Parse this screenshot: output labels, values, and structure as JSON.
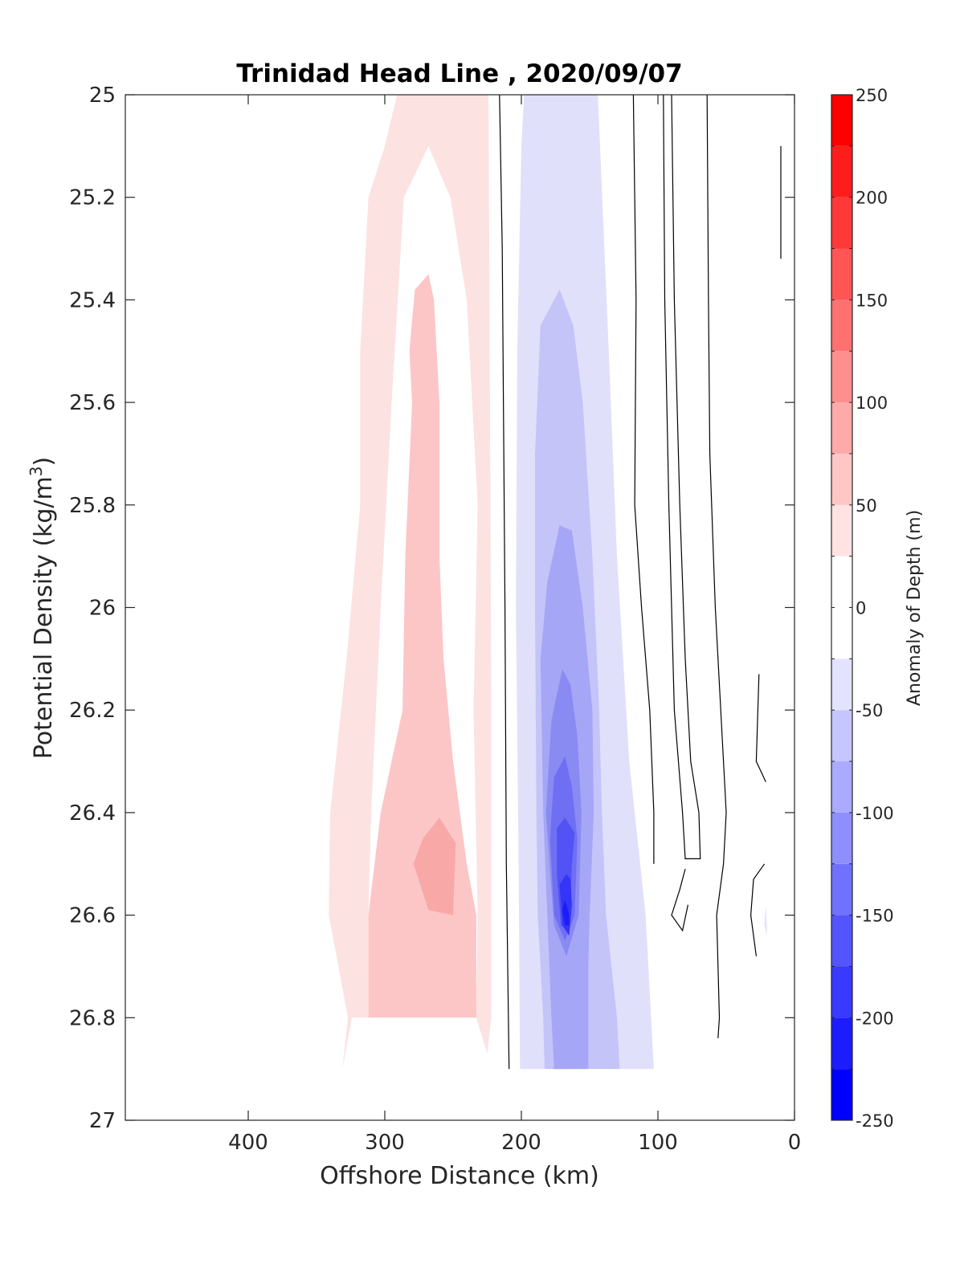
{
  "chart_data": {
    "type": "contour",
    "title": "Trinidad Head Line , 2020/09/07",
    "xlabel": "Offshore Distance (km)",
    "ylabel_main": "Potential Density (kg/m",
    "ylabel_sup": "3",
    "ylabel_close": ")",
    "xlim": [
      0,
      490
    ],
    "x_reversed": true,
    "ylim": [
      25,
      27
    ],
    "y_reversed": true,
    "x_ticks": [
      400,
      300,
      200,
      100,
      0
    ],
    "x_tick_labels": [
      "400",
      "300",
      "200",
      "100",
      "0"
    ],
    "y_ticks": [
      25,
      25.2,
      25.4,
      25.6,
      25.8,
      26,
      26.2,
      26.4,
      26.6,
      26.8,
      27
    ],
    "y_tick_labels": [
      "25",
      "25.2",
      "25.4",
      "25.6",
      "25.8",
      "26",
      "26.2",
      "26.4",
      "26.6",
      "26.8",
      "27"
    ],
    "colorbar": {
      "label": "Anomaly of Depth (m)",
      "range": [
        -250,
        250
      ],
      "step": 25,
      "ticks": [
        -250,
        -200,
        -150,
        -100,
        -50,
        0,
        50,
        100,
        150,
        200,
        250
      ],
      "tick_labels": [
        "-250",
        "-200",
        "-150",
        "-100",
        "-50",
        "0",
        "50",
        "100",
        "150",
        "200",
        "250"
      ]
    },
    "filled_regions": [
      {
        "level": 25,
        "color": "#fde2e2",
        "points": [
          [
            291,
            25
          ],
          [
            224,
            25
          ],
          [
            222,
            26.2
          ],
          [
            222,
            26.8
          ],
          [
            225,
            26.87
          ],
          [
            233,
            26.8
          ],
          [
            232,
            26.6
          ],
          [
            235,
            26.2
          ],
          [
            232,
            25.8
          ],
          [
            240,
            25.4
          ],
          [
            252,
            25.2
          ],
          [
            268,
            25.1
          ],
          [
            286,
            25.2
          ],
          [
            295,
            25.6
          ],
          [
            303,
            26
          ],
          [
            310,
            26.4
          ],
          [
            312,
            26.6
          ],
          [
            312,
            26.8
          ],
          [
            324,
            26.8
          ],
          [
            331,
            26.9
          ],
          [
            327,
            26.8
          ],
          [
            341,
            26.6
          ],
          [
            340,
            26.4
          ],
          [
            328,
            26.1
          ],
          [
            318,
            25.8
          ],
          [
            318,
            25.5
          ],
          [
            312,
            25.2
          ],
          [
            300,
            25.1
          ]
        ]
      },
      {
        "level": 50,
        "color": "#fcc6c6",
        "points": [
          [
            278,
            25.38
          ],
          [
            268,
            25.35
          ],
          [
            264,
            25.4
          ],
          [
            260,
            25.6
          ],
          [
            260,
            25.9
          ],
          [
            257,
            26.1
          ],
          [
            250,
            26.3
          ],
          [
            240,
            26.5
          ],
          [
            233,
            26.6
          ],
          [
            233,
            26.8
          ],
          [
            312,
            26.8
          ],
          [
            312,
            26.6
          ],
          [
            303,
            26.4
          ],
          [
            287,
            26.2
          ],
          [
            285,
            25.9
          ],
          [
            280,
            25.6
          ],
          [
            282,
            25.5
          ]
        ]
      },
      {
        "level": 75,
        "color": "#f9a8a8",
        "points": [
          [
            260,
            26.41
          ],
          [
            248,
            26.46
          ],
          [
            250,
            26.6
          ],
          [
            268,
            26.59
          ],
          [
            279,
            26.5
          ],
          [
            272,
            26.45
          ]
        ]
      },
      {
        "level": -25,
        "color": "#e0e0fb",
        "points": [
          [
            198,
            25
          ],
          [
            144,
            25
          ],
          [
            136,
            25.5
          ],
          [
            130,
            25.9
          ],
          [
            121,
            26.3
          ],
          [
            109,
            26.6
          ],
          [
            103,
            26.9
          ],
          [
            201,
            26.9
          ],
          [
            202,
            26.5
          ],
          [
            204,
            26.0
          ],
          [
            203,
            25.5
          ],
          [
            200,
            25.1
          ]
        ]
      },
      {
        "level": -50,
        "color": "#c4c4f9",
        "points": [
          [
            172,
            25.38
          ],
          [
            186,
            25.45
          ],
          [
            190,
            25.7
          ],
          [
            190,
            26.0
          ],
          [
            189,
            26.4
          ],
          [
            188,
            26.6
          ],
          [
            184,
            26.8
          ],
          [
            183,
            26.9
          ],
          [
            128,
            26.9
          ],
          [
            130,
            26.8
          ],
          [
            138,
            26.6
          ],
          [
            141,
            26.4
          ],
          [
            143,
            26.2
          ],
          [
            148,
            25.9
          ],
          [
            155,
            25.6
          ],
          [
            162,
            25.45
          ]
        ]
      },
      {
        "level": -75,
        "color": "#a6a6f6",
        "points": [
          [
            172,
            25.84
          ],
          [
            181,
            25.95
          ],
          [
            186,
            26.1
          ],
          [
            184,
            26.4
          ],
          [
            181,
            26.6
          ],
          [
            178,
            26.8
          ],
          [
            176,
            26.9
          ],
          [
            151,
            26.9
          ],
          [
            151,
            26.7
          ],
          [
            150,
            26.6
          ],
          [
            147,
            26.4
          ],
          [
            148,
            26.2
          ],
          [
            155,
            26.0
          ],
          [
            163,
            25.85
          ]
        ]
      },
      {
        "level": -100,
        "color": "#8a8af3",
        "points": [
          [
            170,
            26.12
          ],
          [
            178,
            26.22
          ],
          [
            182,
            26.4
          ],
          [
            178,
            26.55
          ],
          [
            176,
            26.62
          ],
          [
            167,
            26.68
          ],
          [
            158,
            26.6
          ],
          [
            156,
            26.4
          ],
          [
            159,
            26.25
          ],
          [
            164,
            26.15
          ]
        ]
      },
      {
        "level": -125,
        "color": "#6f6ff3",
        "points": [
          [
            168,
            26.29
          ],
          [
            176,
            26.33
          ],
          [
            179,
            26.45
          ],
          [
            176,
            26.6
          ],
          [
            168,
            26.65
          ],
          [
            161,
            26.6
          ],
          [
            159,
            26.45
          ],
          [
            163,
            26.35
          ]
        ]
      },
      {
        "level": -150,
        "color": "#5252f5",
        "points": [
          [
            168,
            26.41
          ],
          [
            174,
            26.43
          ],
          [
            174,
            26.52
          ],
          [
            171,
            26.62
          ],
          [
            165,
            26.63
          ],
          [
            163,
            26.5
          ],
          [
            161,
            26.44
          ]
        ]
      },
      {
        "level": -175,
        "color": "#3535f7",
        "points": [
          [
            167,
            26.52
          ],
          [
            172,
            26.54
          ],
          [
            170,
            26.62
          ],
          [
            165,
            26.64
          ],
          [
            163,
            26.58
          ],
          [
            164,
            26.53
          ]
        ]
      },
      {
        "level": -200,
        "color": "#1c1cf9",
        "points": [
          [
            168,
            26.57
          ],
          [
            170,
            26.59
          ],
          [
            168,
            26.62
          ],
          [
            165,
            26.62
          ],
          [
            165,
            26.6
          ]
        ]
      },
      {
        "level": -75,
        "color": "#a6a6f6",
        "points": [
          [
            170,
            26.87
          ],
          [
            177,
            26.9
          ],
          [
            164,
            26.9
          ]
        ]
      },
      {
        "level": -25,
        "color": "#e0e0fb",
        "points": [
          [
            21,
            26.58
          ],
          [
            22,
            26.62
          ],
          [
            20,
            26.64
          ]
        ]
      }
    ],
    "contour_lines": [
      {
        "level": 0,
        "points": [
          [
            216,
            25
          ],
          [
            214,
            25.3
          ],
          [
            212,
            26
          ],
          [
            211,
            26.5
          ],
          [
            209,
            26.9
          ]
        ]
      },
      {
        "level": 0,
        "points": [
          [
            118,
            25
          ],
          [
            116,
            25.4
          ],
          [
            117,
            25.8
          ],
          [
            112,
            26
          ],
          [
            106,
            26.2
          ],
          [
            103,
            26.4
          ],
          [
            103,
            26.5
          ]
        ]
      },
      {
        "level": 0,
        "points": [
          [
            90,
            25
          ],
          [
            88,
            25.4
          ],
          [
            84,
            25.8
          ],
          [
            80,
            26.1
          ],
          [
            76,
            26.3
          ],
          [
            70,
            26.4
          ],
          [
            69,
            26.49
          ],
          [
            80,
            26.49
          ],
          [
            82,
            26.4
          ],
          [
            88,
            26.2
          ],
          [
            92,
            25.8
          ],
          [
            95,
            25.4
          ],
          [
            96,
            25
          ]
        ]
      },
      {
        "level": 0,
        "points": [
          [
            64,
            25
          ],
          [
            63,
            25.4
          ],
          [
            62,
            25.7
          ],
          [
            58,
            26
          ],
          [
            54,
            26.2
          ],
          [
            50,
            26.4
          ],
          [
            52,
            26.5
          ],
          [
            57,
            26.6
          ],
          [
            55,
            26.8
          ],
          [
            56,
            26.84
          ]
        ]
      },
      {
        "level": 0,
        "points": [
          [
            80,
            26.51
          ],
          [
            84,
            26.55
          ],
          [
            90,
            26.6
          ],
          [
            82,
            26.63
          ],
          [
            78,
            26.58
          ]
        ]
      },
      {
        "level": 0,
        "points": [
          [
            10,
            25.1
          ],
          [
            10,
            25.32
          ]
        ]
      },
      {
        "level": 0,
        "points": [
          [
            26,
            26.13
          ],
          [
            28,
            26.3
          ],
          [
            21,
            26.34
          ]
        ]
      },
      {
        "level": 0,
        "points": [
          [
            22,
            26.5
          ],
          [
            30,
            26.53
          ],
          [
            32,
            26.6
          ],
          [
            28,
            26.68
          ]
        ]
      }
    ],
    "grid": false,
    "legend": "colorbar-right"
  }
}
